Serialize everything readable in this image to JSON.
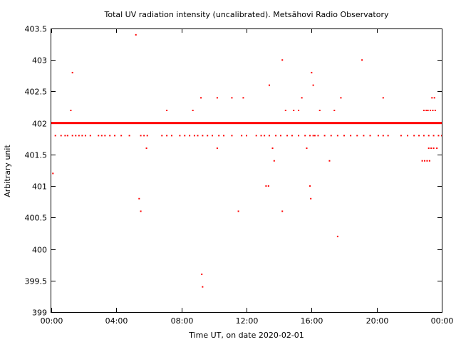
{
  "chart_data": {
    "type": "scatter",
    "title": "Total UV radiation intensity (uncalibrated). Metsähovi Radio Observatory",
    "xlabel": "Time UT, on date 2020-02-01",
    "ylabel": "Arbitrary unit",
    "xlim": [
      0,
      24
    ],
    "ylim": [
      399,
      403.5
    ],
    "x_ticks": [
      0,
      4,
      8,
      12,
      16,
      20,
      24
    ],
    "x_tick_labels": [
      "00:00",
      "04:00",
      "08:00",
      "12:00",
      "16:00",
      "20:00",
      "00:00"
    ],
    "y_ticks": [
      399,
      399.5,
      400,
      400.5,
      401,
      401.5,
      402,
      402.5,
      403,
      403.5
    ],
    "y_tick_labels": [
      "399",
      "399.5",
      "400",
      "400.5",
      "401",
      "401.5",
      "402",
      "402.5",
      "403",
      "403.5"
    ],
    "grid": false,
    "marker_color": "#ff0000",
    "series": [
      {
        "baseline_value": 402.0,
        "baseline_coverage_hours": [
          0,
          24
        ],
        "x": [
          0.25,
          0.6,
          0.85,
          1.0,
          1.3,
          1.5,
          1.7,
          1.9,
          2.1,
          2.4,
          2.9,
          3.1,
          3.3,
          3.6,
          3.9,
          4.3,
          4.8,
          5.5,
          5.7,
          5.9,
          6.8,
          7.1,
          7.4,
          7.9,
          8.2,
          8.5,
          8.8,
          9.0,
          9.3,
          9.6,
          9.9,
          10.3,
          10.6,
          11.1,
          11.7,
          12.0,
          12.6,
          12.9,
          13.1,
          13.4,
          13.8,
          14.1,
          14.5,
          14.8,
          15.2,
          15.6,
          15.9,
          16.1,
          16.4,
          16.8,
          17.2,
          17.6,
          18.0,
          18.4,
          18.8,
          19.2,
          19.6,
          20.1,
          20.4,
          20.7,
          21.5,
          21.9,
          22.3,
          22.6,
          22.9,
          23.2,
          23.5,
          23.8,
          24.0,
          0.1,
          1.2,
          1.3,
          5.2,
          5.4,
          5.5,
          5.85,
          7.1,
          8.7,
          9.2,
          9.25,
          9.3,
          10.2,
          10.2,
          11.1,
          11.5,
          11.8,
          13.2,
          13.35,
          13.4,
          13.6,
          13.7,
          14.2,
          14.2,
          14.4,
          14.9,
          15.2,
          15.4,
          15.7,
          15.9,
          15.95,
          16.0,
          16.1,
          16.2,
          16.5,
          17.1,
          17.4,
          17.6,
          17.8,
          19.1,
          20.4,
          22.8,
          22.9,
          22.95,
          23.05,
          23.1,
          23.15,
          23.2,
          23.25,
          23.3,
          23.35,
          23.4,
          23.45,
          23.5,
          23.55,
          23.6,
          23.65,
          23.7
        ],
        "y": [
          401.8,
          401.8,
          401.8,
          401.8,
          401.8,
          401.8,
          401.8,
          401.8,
          401.8,
          401.8,
          401.8,
          401.8,
          401.8,
          401.8,
          401.8,
          401.8,
          401.8,
          401.8,
          401.8,
          401.8,
          401.8,
          401.8,
          401.8,
          401.8,
          401.8,
          401.8,
          401.8,
          401.8,
          401.8,
          401.8,
          401.8,
          401.8,
          401.8,
          401.8,
          401.8,
          401.8,
          401.8,
          401.8,
          401.8,
          401.8,
          401.8,
          401.8,
          401.8,
          401.8,
          401.8,
          401.8,
          401.8,
          401.8,
          401.8,
          401.8,
          401.8,
          401.8,
          401.8,
          401.8,
          401.8,
          401.8,
          401.8,
          401.8,
          401.8,
          401.8,
          401.8,
          401.8,
          401.8,
          401.8,
          401.8,
          401.8,
          401.8,
          401.8,
          401.8,
          401.2,
          402.2,
          402.8,
          403.4,
          400.8,
          400.6,
          401.6,
          402.2,
          402.2,
          402.4,
          399.6,
          399.4,
          402.4,
          401.6,
          402.4,
          400.6,
          402.4,
          401.0,
          401.0,
          402.6,
          401.6,
          401.4,
          403.0,
          400.6,
          402.2,
          402.2,
          402.2,
          402.4,
          401.6,
          401.0,
          400.8,
          402.8,
          402.6,
          401.8,
          402.2,
          401.4,
          402.2,
          400.2,
          402.4,
          403.0,
          402.4,
          401.4,
          402.2,
          401.4,
          402.2,
          401.4,
          402.2,
          401.6,
          401.4,
          402.2,
          401.6,
          402.4,
          402.2,
          401.6,
          402.4,
          402.2,
          402.0,
          401.6
        ]
      }
    ]
  }
}
